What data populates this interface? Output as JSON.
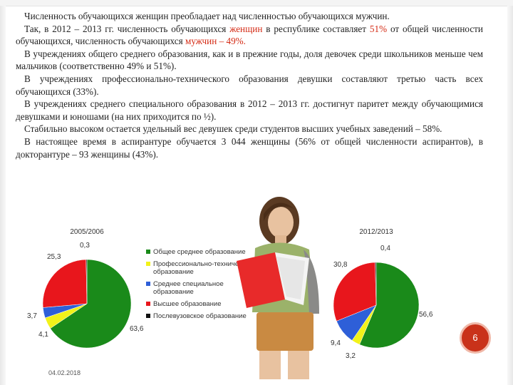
{
  "slide": {
    "lead": "Численность обучающихся женщин преобладает над численностью обучающихся мужчин.",
    "p2_a": "Так, в 2012 – 2013 гг. численность обучающихся ",
    "p2_b": "женщин",
    "p2_c": " в республике составляет ",
    "p2_d": "51%",
    "p2_e": " от общей численности обучающихся, численность обучающихся ",
    "p2_f": "мужчин – 49%.",
    "p3": "В учреждениях общего среднего образования, как и в прежние годы, доля девочек среди школьников меньше чем мальчиков (соответственно 49% и 51%).",
    "p4": "В учреждениях профессионально-технического образования девушки составляют третью часть всех обучающихся (33%).",
    "p5": "В учреждениях среднего специального образования в 2012 – 2013 гг. достигнут паритет между обучающимися девушками и юношами (на них приходится по ½).",
    "p6": "Стабильно высоком остается удельный вес девушек среди студентов высших учебных заведений – 58%.",
    "p7": "В настоящее время в аспирантуре обучается 3 044 женщины (56% от общей численности аспирантов), в докторантуре – 93 женщины (43%).",
    "page_number": "6",
    "date": "04.02.2018"
  },
  "colors": {
    "general": "#1a8a1a",
    "vocational": "#f2f21a",
    "secondary_special": "#2e5fd8",
    "higher": "#e8161c",
    "postgraduate": "#111111",
    "highlight": "#d42a14"
  },
  "legend": [
    {
      "label": "Общее среднее образование",
      "color_key": "general"
    },
    {
      "label": "Профессионально-техническое образование",
      "color_key": "vocational"
    },
    {
      "label": "Среднее специальное образование",
      "color_key": "secondary_special"
    },
    {
      "label": "Высшее образование",
      "color_key": "higher"
    },
    {
      "label": "Послевузовское образование",
      "color_key": "postgraduate"
    }
  ],
  "chart_data": [
    {
      "type": "pie",
      "title": "2005/2006",
      "categories": [
        "Общее среднее образование",
        "Профессионально-техническое образование",
        "Среднее специальное образование",
        "Высшее образование",
        "Послевузовское образование"
      ],
      "values": [
        63.6,
        4.1,
        3.7,
        25.3,
        0.3
      ],
      "labels": [
        "63,6",
        "4,1",
        "3,7",
        "25,3",
        "0,3"
      ]
    },
    {
      "type": "pie",
      "title": "2012/2013",
      "categories": [
        "Общее среднее образование",
        "Профессионально-техническое образование",
        "Среднее специальное образование",
        "Высшее образование",
        "Послевузовское образование"
      ],
      "values": [
        56.6,
        3.2,
        9.4,
        30.8,
        0.4
      ],
      "labels": [
        "56,6",
        "3,2",
        "9,4",
        "30,8",
        "0,4"
      ]
    }
  ]
}
